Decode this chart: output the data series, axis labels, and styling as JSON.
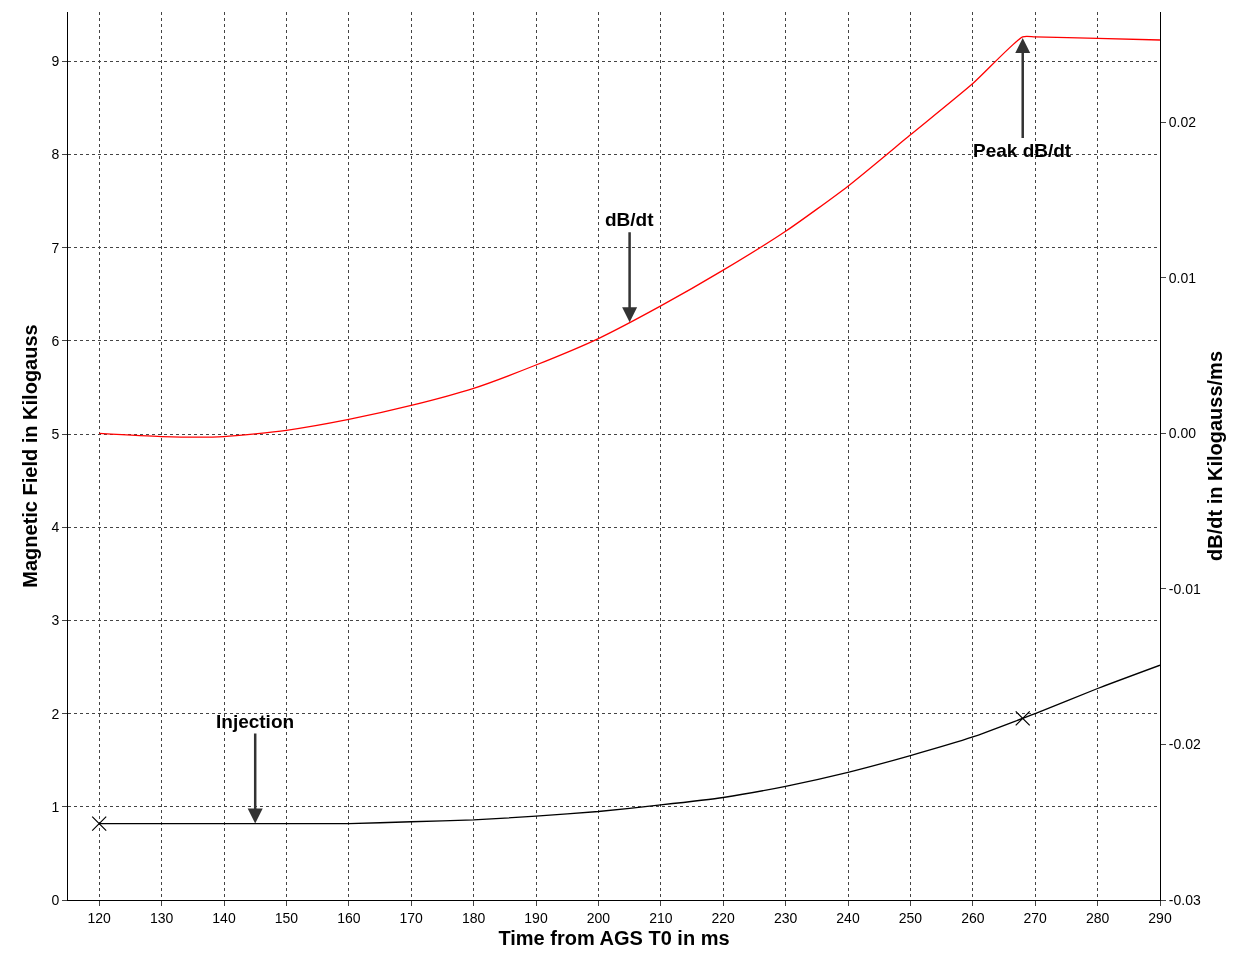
{
  "chart_data": {
    "type": "line",
    "xlabel": "Time from AGS T0 in ms",
    "ylabel": "Magnetic Field in Kilogauss",
    "y2label": "dB/dt in Kilogauss/ms",
    "x": [
      120,
      130,
      140,
      150,
      160,
      170,
      180,
      190,
      200,
      210,
      220,
      230,
      240,
      250,
      260,
      268,
      270,
      280,
      290
    ],
    "series": [
      {
        "color": "#000000",
        "values": [
          0.82,
          0.82,
          0.82,
          0.82,
          0.82,
          0.84,
          0.86,
          0.9,
          0.95,
          1.02,
          1.1,
          1.22,
          1.37,
          1.55,
          1.75,
          1.95,
          2.0,
          2.27,
          2.52
        ]
      },
      {
        "color": "#ff0000",
        "axis": "y2",
        "values": [
          0.0,
          -0.0002,
          -0.0002,
          0.0002,
          0.0009,
          0.0018,
          0.0029,
          0.0044,
          0.0061,
          0.0082,
          0.0105,
          0.013,
          0.0159,
          0.0192,
          0.0225,
          0.0255,
          0.0255,
          0.0254,
          0.0253
        ]
      },
      {
        "type": "scatter",
        "color": "#000000",
        "marker": "cross",
        "x": [
          120,
          268
        ],
        "values": [
          0.82,
          1.95
        ]
      }
    ],
    "xlim": [
      115,
      290
    ],
    "xticks": [
      120,
      130,
      140,
      150,
      160,
      170,
      180,
      190,
      200,
      210,
      220,
      230,
      240,
      250,
      260,
      270,
      280,
      290
    ],
    "ylim": [
      0,
      9.53
    ],
    "yticks": [
      0,
      1,
      2,
      3,
      4,
      5,
      6,
      7,
      8,
      9
    ],
    "y2lim": [
      -0.03,
      0.0271
    ],
    "y2ticks": [
      {
        "value": -0.03,
        "label": "-0.03"
      },
      {
        "value": -0.02,
        "label": "-0.02"
      },
      {
        "value": -0.01,
        "label": "-0.01"
      },
      {
        "value": 0,
        "label": "0.00"
      },
      {
        "value": 0.01,
        "label": "0.01"
      },
      {
        "value": 0.02,
        "label": "0.02"
      }
    ],
    "annotations": [
      {
        "text": "dB/dt",
        "x": 205,
        "y": 6.2
      },
      {
        "text": "Peak dB/dt",
        "x": 268,
        "y": 9.25
      },
      {
        "text": "Injection",
        "x": 145,
        "y": 0.82
      }
    ],
    "grid": true,
    "line_style": "solid"
  }
}
